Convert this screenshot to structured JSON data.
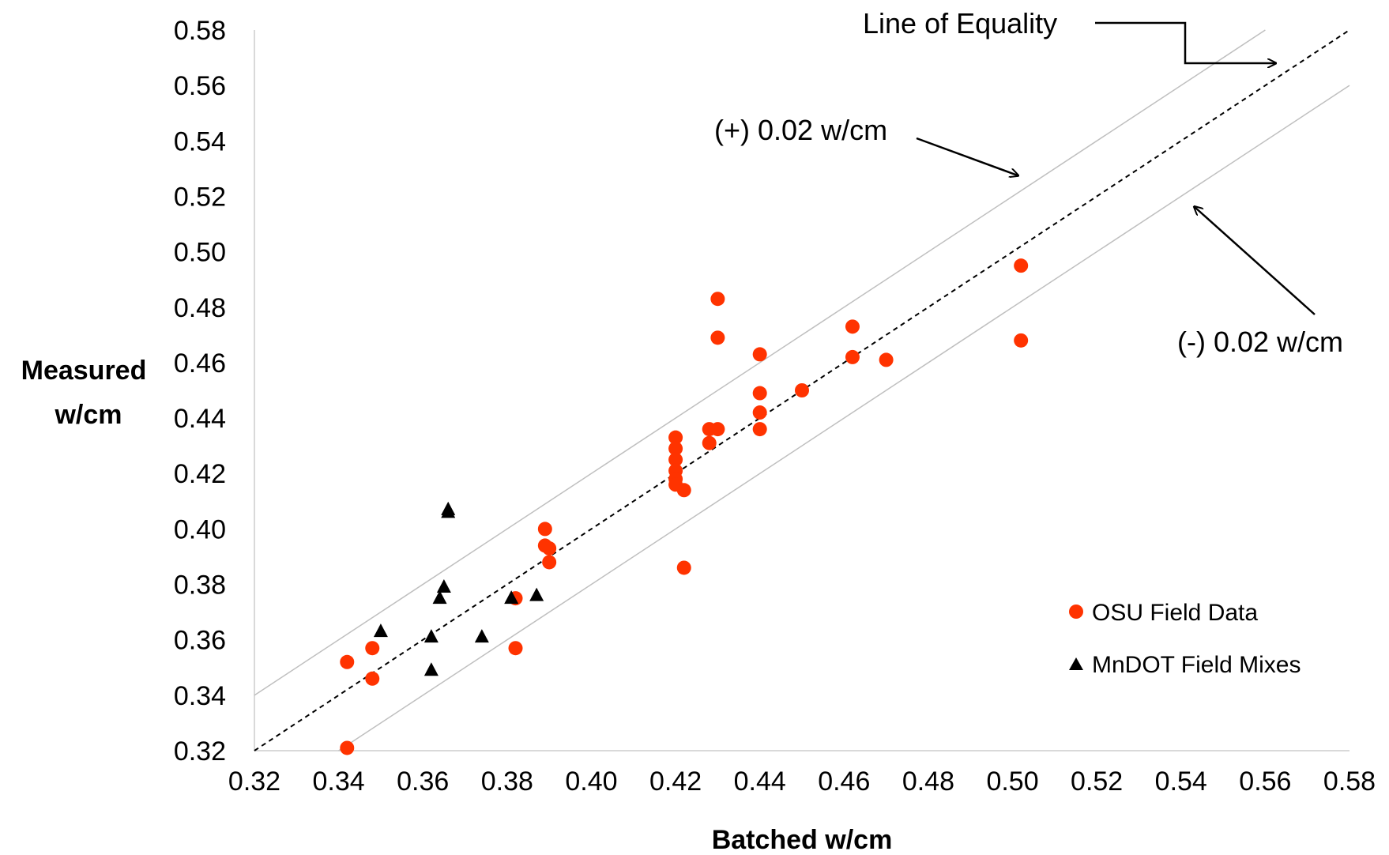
{
  "chart_data": {
    "type": "scatter",
    "xlabel": "Batched w/cm",
    "ylabel_lines": [
      "Measured",
      "w/cm"
    ],
    "xlim": [
      0.32,
      0.58
    ],
    "ylim": [
      0.32,
      0.58
    ],
    "xticks": [
      "0.32",
      "0.34",
      "0.36",
      "0.38",
      "0.40",
      "0.42",
      "0.44",
      "0.46",
      "0.48",
      "0.50",
      "0.52",
      "0.54",
      "0.56",
      "0.58"
    ],
    "yticks": [
      "0.32",
      "0.34",
      "0.36",
      "0.38",
      "0.40",
      "0.42",
      "0.44",
      "0.46",
      "0.48",
      "0.50",
      "0.52",
      "0.54",
      "0.56",
      "0.58"
    ],
    "grid": false,
    "legend_position": "bottom-right",
    "series": [
      {
        "name": "OSU Field Data",
        "marker": "circle",
        "color": "#ff3300",
        "points": [
          [
            0.342,
            0.352
          ],
          [
            0.342,
            0.321
          ],
          [
            0.348,
            0.357
          ],
          [
            0.348,
            0.346
          ],
          [
            0.382,
            0.375
          ],
          [
            0.382,
            0.357
          ],
          [
            0.389,
            0.4
          ],
          [
            0.389,
            0.394
          ],
          [
            0.39,
            0.393
          ],
          [
            0.39,
            0.388
          ],
          [
            0.42,
            0.433
          ],
          [
            0.42,
            0.429
          ],
          [
            0.42,
            0.425
          ],
          [
            0.42,
            0.421
          ],
          [
            0.42,
            0.418
          ],
          [
            0.42,
            0.416
          ],
          [
            0.422,
            0.414
          ],
          [
            0.422,
            0.386
          ],
          [
            0.428,
            0.436
          ],
          [
            0.428,
            0.431
          ],
          [
            0.43,
            0.436
          ],
          [
            0.43,
            0.483
          ],
          [
            0.43,
            0.469
          ],
          [
            0.44,
            0.463
          ],
          [
            0.44,
            0.449
          ],
          [
            0.44,
            0.442
          ],
          [
            0.44,
            0.436
          ],
          [
            0.45,
            0.45
          ],
          [
            0.462,
            0.473
          ],
          [
            0.462,
            0.462
          ],
          [
            0.47,
            0.461
          ],
          [
            0.502,
            0.495
          ],
          [
            0.502,
            0.468
          ]
        ]
      },
      {
        "name": "MnDOT Field Mixes",
        "marker": "triangle",
        "color": "#000000",
        "points": [
          [
            0.35,
            0.363
          ],
          [
            0.362,
            0.361
          ],
          [
            0.362,
            0.349
          ],
          [
            0.364,
            0.375
          ],
          [
            0.365,
            0.379
          ],
          [
            0.366,
            0.407
          ],
          [
            0.366,
            0.406
          ],
          [
            0.374,
            0.361
          ],
          [
            0.381,
            0.375
          ],
          [
            0.387,
            0.376
          ]
        ]
      }
    ],
    "reference_lines": [
      {
        "label": "Line of Equality",
        "offset": 0.0,
        "style": "dashed"
      },
      {
        "label": "(+) 0.02 w/cm",
        "offset": 0.02,
        "style": "solid"
      },
      {
        "label": "(-) 0.02 w/cm",
        "offset": -0.02,
        "style": "solid"
      }
    ]
  }
}
